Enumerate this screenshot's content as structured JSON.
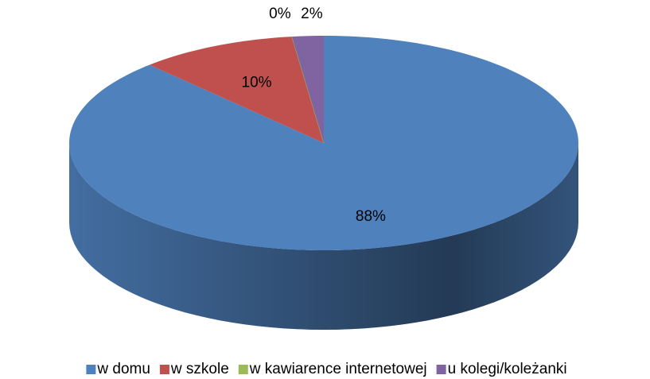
{
  "chart_data": {
    "type": "pie",
    "categories": [
      "w domu",
      "w szkole",
      "w kawiarence internetowej",
      "u kolegi/koleżanki"
    ],
    "values": [
      88,
      10,
      0,
      2
    ],
    "value_labels": [
      "88%",
      "10%",
      "0%",
      "2%"
    ],
    "colors": [
      "#4f81bd",
      "#c0504d",
      "#9bbb59",
      "#8064a2"
    ],
    "legend": "bottom"
  }
}
